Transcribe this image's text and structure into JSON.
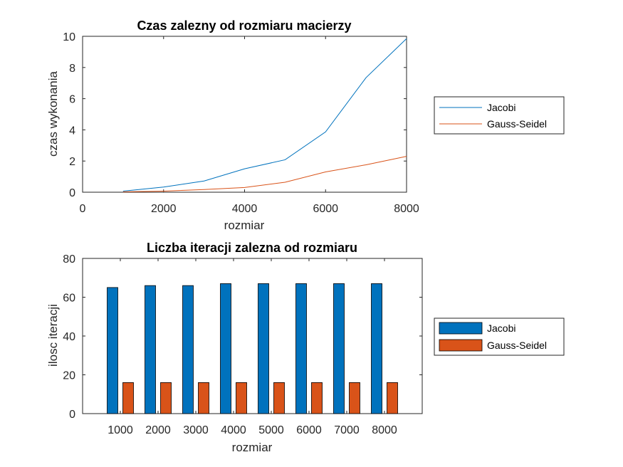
{
  "chart_data": [
    {
      "type": "line",
      "title": "Czas zalezny od rozmiaru macierzy",
      "xlabel": "rozmiar",
      "ylabel": "czas wykonania",
      "xlim": [
        0,
        8000
      ],
      "ylim": [
        0,
        10
      ],
      "xticks": [
        0,
        2000,
        4000,
        6000,
        8000
      ],
      "yticks": [
        0,
        2,
        4,
        6,
        8,
        10
      ],
      "grid": false,
      "legend_position": "outside-right",
      "x": [
        1000,
        2000,
        3000,
        4000,
        5000,
        6000,
        7000,
        8000
      ],
      "series": [
        {
          "name": "Jacobi",
          "color": "#0072BD",
          "values": [
            0.07,
            0.33,
            0.72,
            1.5,
            2.08,
            3.87,
            7.35,
            9.85
          ]
        },
        {
          "name": "Gauss-Seidel",
          "color": "#D95319",
          "values": [
            0.02,
            0.07,
            0.17,
            0.3,
            0.64,
            1.3,
            1.76,
            2.3
          ]
        }
      ]
    },
    {
      "type": "bar",
      "title": "Liczba iteracji zalezna od rozmiaru",
      "xlabel": "rozmiar",
      "ylabel": "ilosc iteracji",
      "ylim": [
        0,
        80
      ],
      "yticks": [
        0,
        20,
        40,
        60,
        80
      ],
      "grid": false,
      "legend_position": "outside-right",
      "categories": [
        "1000",
        "2000",
        "3000",
        "4000",
        "5000",
        "6000",
        "7000",
        "8000"
      ],
      "series": [
        {
          "name": "Jacobi",
          "color": "#0072BD",
          "values": [
            65,
            66,
            66,
            67,
            67,
            67,
            67,
            67
          ]
        },
        {
          "name": "Gauss-Seidel",
          "color": "#D95319",
          "values": [
            16,
            16,
            16,
            16,
            16,
            16,
            16,
            16
          ]
        }
      ]
    }
  ]
}
